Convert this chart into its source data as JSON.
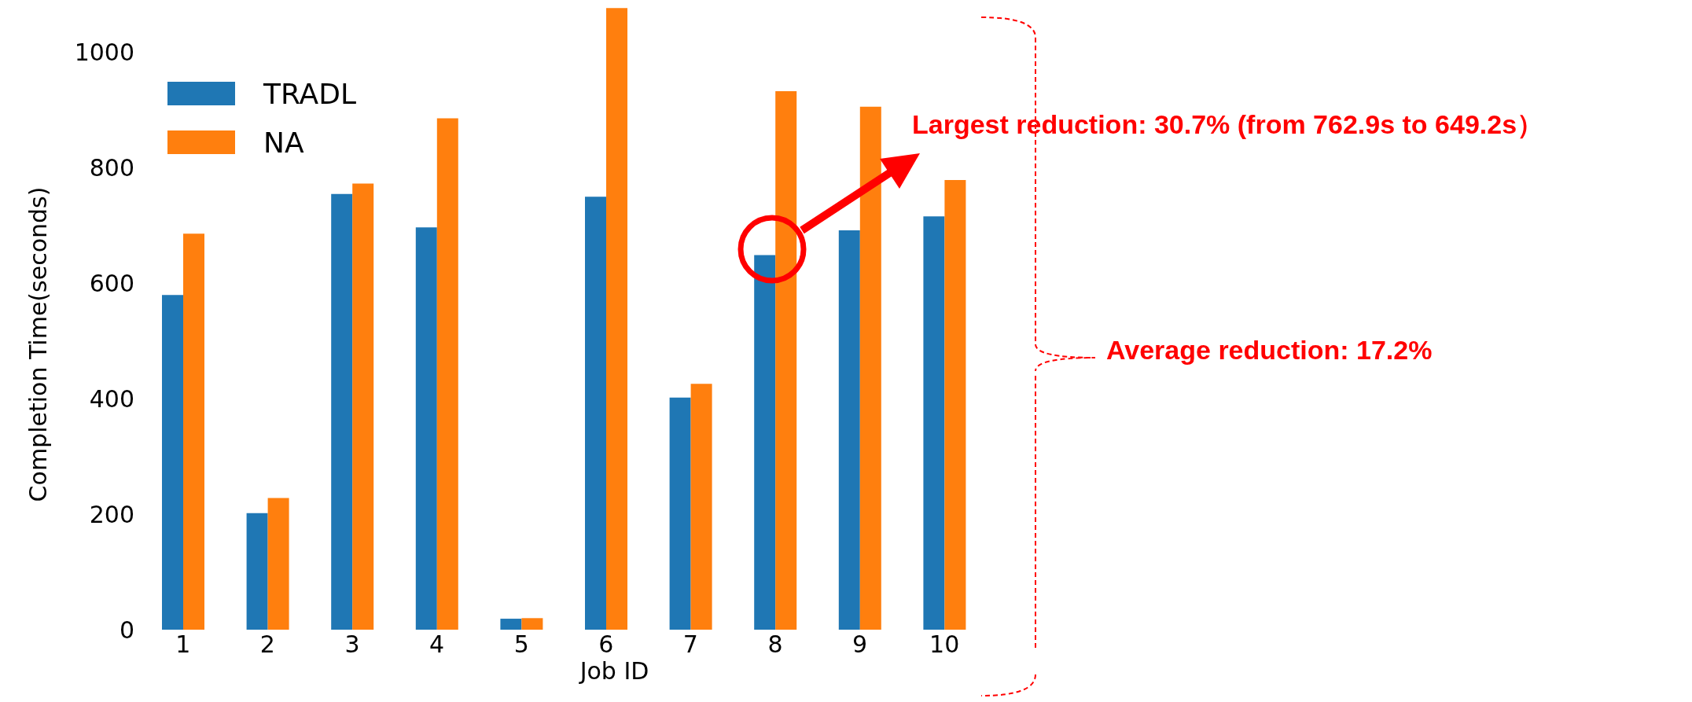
{
  "chart_data": {
    "type": "bar",
    "xlabel": "Job ID",
    "ylabel": "Completion Time(seconds)",
    "categories": [
      "1",
      "2",
      "3",
      "4",
      "5",
      "6",
      "7",
      "8",
      "9",
      "10"
    ],
    "series": [
      {
        "name": "TRADL",
        "color": "#1f77b4",
        "values": [
          580,
          202,
          755,
          697,
          19,
          750,
          402,
          649,
          692,
          716
        ]
      },
      {
        "name": "NA",
        "color": "#ff7f0e",
        "values": [
          686,
          228,
          773,
          886,
          20,
          1077,
          426,
          933,
          906,
          779
        ]
      }
    ],
    "ylim": [
      0,
      1080
    ],
    "yticks": [
      0,
      200,
      400,
      600,
      800,
      1000
    ],
    "grid": false,
    "legend": "top left",
    "annotations": [
      "Largest reduction: 30.7% (from 762.9s to 649.2s）",
      "Average reduction: 17.2%"
    ]
  }
}
